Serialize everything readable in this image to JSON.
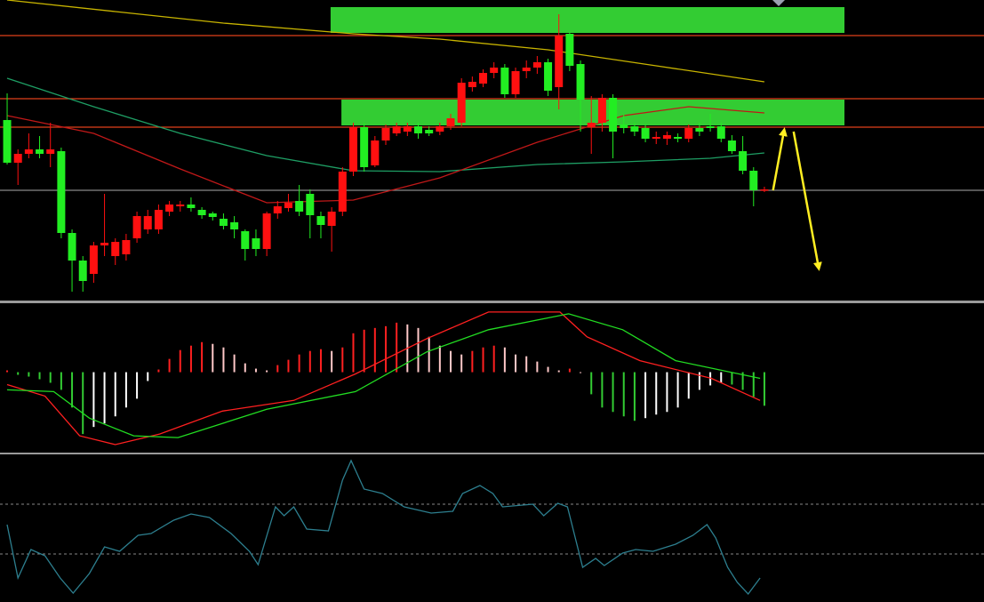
{
  "chart_data": [
    {
      "type": "candlestick",
      "xlim": [
        -0.66,
        90.3
      ],
      "ylim": [
        0,
        338
      ],
      "up_color": "#ff1010",
      "down_color": "#22ee22",
      "open": [
        203,
        155,
        165,
        170,
        165,
        168,
        76,
        45,
        30,
        62,
        50,
        52,
        70,
        80,
        80,
        100,
        106,
        108,
        102,
        98,
        92,
        88,
        78,
        70,
        58,
        98,
        104,
        112,
        120,
        95,
        84,
        100,
        145,
        195,
        152,
        180,
        188,
        190,
        196,
        192,
        190,
        196,
        200,
        240,
        244,
        256,
        262,
        232,
        258,
        262,
        268,
        240,
        300,
        266,
        195,
        200,
        228,
        198,
        196,
        194,
        182,
        182,
        184,
        182,
        194,
        196,
        196,
        180,
        168,
        146,
        124
      ],
      "high": [
        233,
        170,
        188,
        185,
        200,
        172,
        80,
        50,
        66,
        120,
        70,
        75,
        100,
        102,
        108,
        112,
        112,
        116,
        105,
        100,
        98,
        95,
        80,
        80,
        100,
        112,
        120,
        130,
        125,
        100,
        105,
        150,
        200,
        200,
        185,
        198,
        200,
        200,
        200,
        196,
        200,
        210,
        250,
        252,
        260,
        268,
        266,
        262,
        270,
        275,
        272,
        322,
        302,
        270,
        230,
        232,
        232,
        210,
        200,
        198,
        190,
        190,
        188,
        198,
        200,
        210,
        200,
        186,
        185,
        150,
        128
      ],
      "low": [
        153,
        130,
        160,
        160,
        150,
        70,
        10,
        10,
        20,
        50,
        40,
        45,
        65,
        75,
        75,
        95,
        100,
        100,
        92,
        90,
        80,
        70,
        45,
        50,
        50,
        92,
        100,
        95,
        70,
        70,
        55,
        95,
        140,
        145,
        150,
        175,
        185,
        185,
        182,
        185,
        186,
        192,
        196,
        235,
        240,
        250,
        228,
        228,
        250,
        255,
        230,
        215,
        258,
        190,
        165,
        190,
        160,
        188,
        185,
        178,
        176,
        175,
        178,
        178,
        185,
        190,
        178,
        165,
        142,
        106,
        122
      ],
      "close": [
        155,
        165,
        170,
        165,
        170,
        76,
        45,
        22,
        62,
        65,
        66,
        68,
        95,
        95,
        102,
        108,
        108,
        104,
        96,
        94,
        84,
        80,
        58,
        58,
        98,
        106,
        110,
        100,
        96,
        85,
        100,
        145,
        195,
        150,
        180,
        194,
        196,
        196,
        188,
        188,
        196,
        205,
        245,
        246,
        256,
        262,
        232,
        258,
        262,
        268,
        236,
        298,
        264,
        226,
        200,
        228,
        190,
        194,
        190,
        182,
        184,
        186,
        182,
        194,
        190,
        194,
        182,
        168,
        146,
        124,
        125
      ],
      "series": [
        {
          "color": "#c8b400",
          "x": [
            0,
            10,
            20,
            32,
            40,
            50,
            60,
            70
          ],
          "values": [
            338,
            325,
            312,
            300,
            294,
            282,
            264,
            246
          ]
        },
        {
          "color": "#1e9e64",
          "x": [
            0,
            8,
            16,
            24,
            32,
            40,
            49,
            57,
            65,
            70
          ],
          "values": [
            250,
            218,
            188,
            163,
            146,
            145,
            153,
            156,
            160,
            166
          ]
        },
        {
          "color": "#c01818",
          "x": [
            0,
            8,
            16,
            24,
            32,
            40,
            49,
            57,
            63,
            70
          ],
          "values": [
            208,
            188,
            148,
            110,
            113,
            138,
            178,
            208,
            218,
            211
          ]
        }
      ],
      "hlines": [
        {
          "value": 298,
          "color": "#e0401a"
        },
        {
          "value": 227,
          "color": "#e0401a"
        },
        {
          "value": 195,
          "color": "#e0401a"
        },
        {
          "value": 124,
          "color": "#888888"
        }
      ],
      "zones": [
        {
          "x": [
            29.9,
            77.4
          ],
          "y": [
            301,
            330
          ],
          "color": "#33cc33"
        },
        {
          "x": [
            30.9,
            77.4
          ],
          "y": [
            197,
            226
          ],
          "color": "#33cc33"
        }
      ],
      "arrows": [
        {
          "x": [
            70.8,
            71.8
          ],
          "y": [
            124,
            190
          ],
          "color": "#ffee22"
        },
        {
          "x": [
            72.7,
            75
          ],
          "y": [
            190,
            38
          ],
          "color": "#ffee22"
        }
      ]
    },
    {
      "type": "bar",
      "xlim": [
        -0.66,
        90.3
      ],
      "ylim": [
        -90,
        78
      ],
      "colors": {
        "rise": "#ff2020",
        "fall": "#ffc8c8",
        "fall_negative": "#33cc33",
        "rise_negative": "#ffffff"
      },
      "values": [
        2,
        -3,
        -5,
        -8,
        -12,
        -20,
        -40,
        -70,
        -62,
        -58,
        -50,
        -40,
        -30,
        -10,
        3,
        15,
        25,
        30,
        34,
        32,
        28,
        20,
        10,
        4,
        2,
        8,
        14,
        20,
        24,
        26,
        24,
        28,
        44,
        48,
        50,
        52,
        56,
        54,
        50,
        40,
        30,
        24,
        20,
        24,
        28,
        30,
        28,
        20,
        18,
        12,
        6,
        2,
        4,
        0,
        -25,
        -40,
        -45,
        -50,
        -55,
        -52,
        -48,
        -45,
        -40,
        -30,
        -20,
        -15,
        -12,
        -14,
        -20,
        -28,
        -38
      ],
      "series": [
        {
          "color": "#ff2020",
          "x": [
            0,
            3.5,
            6.7,
            10,
            14.1,
            19.9,
            26.5,
            32.2,
            38.8,
            44.5,
            48.6,
            51.1,
            53.6,
            58.5,
            65.1,
            69.6
          ],
          "values": [
            -14,
            -27,
            -72,
            -82,
            -70,
            -44,
            -32,
            -2,
            38,
            68,
            68,
            68,
            40,
            13,
            -7,
            -32
          ]
        },
        {
          "color": "#22dd22",
          "x": [
            0,
            4.3,
            7.6,
            11.7,
            15.8,
            24,
            32.2,
            38.8,
            44.5,
            51.9,
            56.9,
            61.8,
            69.6
          ],
          "values": [
            -20,
            -22,
            -52,
            -72,
            -74,
            -42,
            -22,
            23,
            48,
            66,
            48,
            13,
            -7
          ]
        }
      ]
    },
    {
      "type": "line",
      "xlim": [
        -0.66,
        90.3
      ],
      "ylim": [
        0,
        165
      ],
      "hlines": [
        {
          "value": 110,
          "color": "#888888"
        },
        {
          "value": 54,
          "color": "#888888"
        }
      ],
      "series": [
        {
          "color": "#2d7f8f",
          "x": [
            0,
            1.0,
            2.2,
            3.5,
            4.9,
            6.1,
            7.6,
            9.0,
            10.4,
            12.1,
            13.3,
            15.4,
            17.0,
            18.7,
            20.7,
            22.4,
            23.2,
            24.8,
            25.6,
            26.5,
            27.7,
            29.7,
            31.0,
            31.8,
            33.0,
            34.7,
            36.7,
            39.2,
            41.2,
            42.1,
            43.7,
            44.9,
            45.8,
            48.6,
            49.6,
            50.9,
            51.8,
            53.2,
            54.4,
            55.2,
            56.9,
            58.1,
            59.7,
            61.8,
            63.4,
            64.7,
            65.5,
            66.6,
            67.5,
            68.5,
            69.6
          ],
          "values": [
            87,
            27,
            59,
            52,
            27,
            10,
            32,
            62,
            57,
            75,
            77,
            92,
            99,
            95,
            77,
            57,
            42,
            107,
            97,
            107,
            82,
            80,
            137,
            159,
            127,
            122,
            107,
            100,
            102,
            122,
            131,
            122,
            107,
            110,
            97,
            111,
            107,
            39,
            49,
            41,
            55,
            59,
            57,
            65,
            75,
            87,
            72,
            39,
            22,
            9,
            27
          ]
        }
      ]
    }
  ]
}
